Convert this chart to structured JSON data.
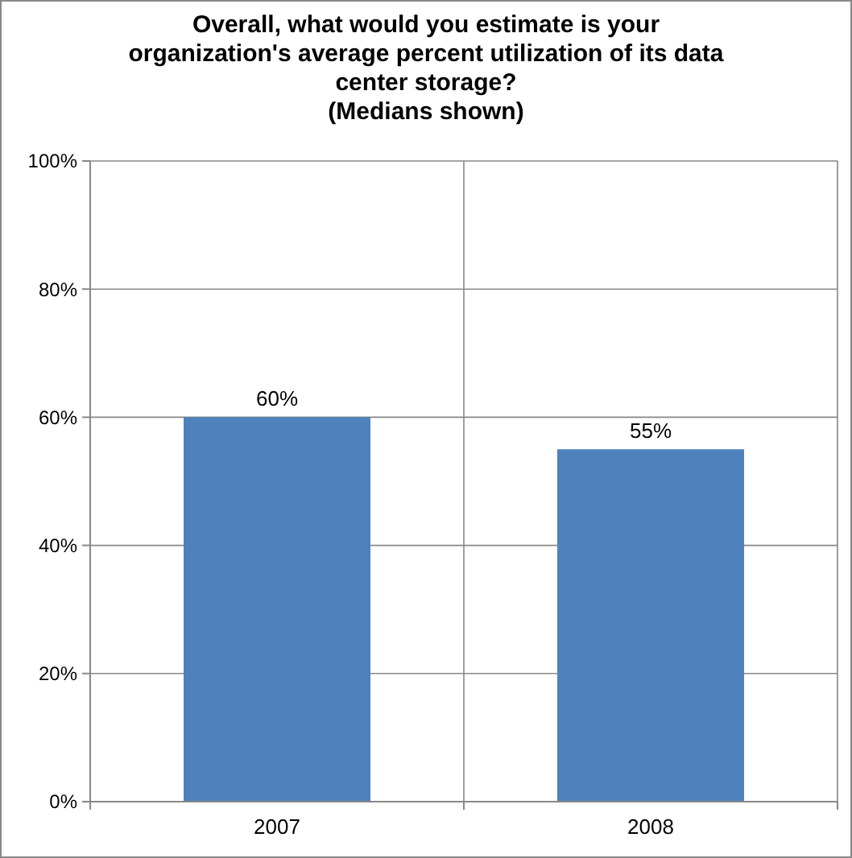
{
  "chart_data": {
    "type": "bar",
    "title": "Overall, what would you estimate is your\norganization's average percent utilization of its data\ncenter storage?\n(Medians shown)",
    "categories": [
      "2007",
      "2008"
    ],
    "values": [
      60,
      55
    ],
    "value_labels": [
      "60%",
      "55%"
    ],
    "color": "#4f81bd",
    "ylim": [
      0,
      100
    ],
    "yticks": [
      {
        "value": 0,
        "label": "0%"
      },
      {
        "value": 20,
        "label": "20%"
      },
      {
        "value": 40,
        "label": "40%"
      },
      {
        "value": 60,
        "label": "60%"
      },
      {
        "value": 80,
        "label": "80%"
      },
      {
        "value": 100,
        "label": "100%"
      }
    ],
    "grid": true
  }
}
